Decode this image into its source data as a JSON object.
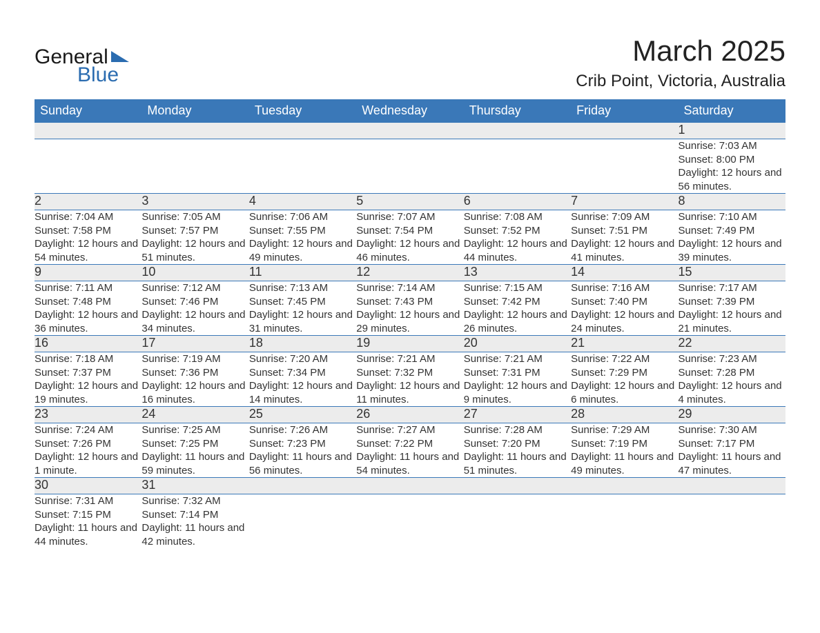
{
  "logo": {
    "top": "General",
    "bottom": "Blue",
    "tri_color": "#2b6cb0"
  },
  "title": {
    "month": "March 2025",
    "location": "Crib Point, Victoria, Australia"
  },
  "colors": {
    "header_bg": "#3a78b8",
    "header_text": "#ffffff",
    "daynum_bg": "#ececec",
    "row_divider": "#3a78b8",
    "body_text": "#333333",
    "background": "#ffffff"
  },
  "typography": {
    "month_fontsize": 42,
    "location_fontsize": 24,
    "th_fontsize": 18,
    "daynum_fontsize": 18,
    "detail_fontsize": 15
  },
  "weekdays": [
    "Sunday",
    "Monday",
    "Tuesday",
    "Wednesday",
    "Thursday",
    "Friday",
    "Saturday"
  ],
  "weeks": [
    [
      null,
      null,
      null,
      null,
      null,
      null,
      {
        "d": "1",
        "sr": "7:03 AM",
        "ss": "8:00 PM",
        "dl": "12 hours and 56 minutes."
      }
    ],
    [
      {
        "d": "2",
        "sr": "7:04 AM",
        "ss": "7:58 PM",
        "dl": "12 hours and 54 minutes."
      },
      {
        "d": "3",
        "sr": "7:05 AM",
        "ss": "7:57 PM",
        "dl": "12 hours and 51 minutes."
      },
      {
        "d": "4",
        "sr": "7:06 AM",
        "ss": "7:55 PM",
        "dl": "12 hours and 49 minutes."
      },
      {
        "d": "5",
        "sr": "7:07 AM",
        "ss": "7:54 PM",
        "dl": "12 hours and 46 minutes."
      },
      {
        "d": "6",
        "sr": "7:08 AM",
        "ss": "7:52 PM",
        "dl": "12 hours and 44 minutes."
      },
      {
        "d": "7",
        "sr": "7:09 AM",
        "ss": "7:51 PM",
        "dl": "12 hours and 41 minutes."
      },
      {
        "d": "8",
        "sr": "7:10 AM",
        "ss": "7:49 PM",
        "dl": "12 hours and 39 minutes."
      }
    ],
    [
      {
        "d": "9",
        "sr": "7:11 AM",
        "ss": "7:48 PM",
        "dl": "12 hours and 36 minutes."
      },
      {
        "d": "10",
        "sr": "7:12 AM",
        "ss": "7:46 PM",
        "dl": "12 hours and 34 minutes."
      },
      {
        "d": "11",
        "sr": "7:13 AM",
        "ss": "7:45 PM",
        "dl": "12 hours and 31 minutes."
      },
      {
        "d": "12",
        "sr": "7:14 AM",
        "ss": "7:43 PM",
        "dl": "12 hours and 29 minutes."
      },
      {
        "d": "13",
        "sr": "7:15 AM",
        "ss": "7:42 PM",
        "dl": "12 hours and 26 minutes."
      },
      {
        "d": "14",
        "sr": "7:16 AM",
        "ss": "7:40 PM",
        "dl": "12 hours and 24 minutes."
      },
      {
        "d": "15",
        "sr": "7:17 AM",
        "ss": "7:39 PM",
        "dl": "12 hours and 21 minutes."
      }
    ],
    [
      {
        "d": "16",
        "sr": "7:18 AM",
        "ss": "7:37 PM",
        "dl": "12 hours and 19 minutes."
      },
      {
        "d": "17",
        "sr": "7:19 AM",
        "ss": "7:36 PM",
        "dl": "12 hours and 16 minutes."
      },
      {
        "d": "18",
        "sr": "7:20 AM",
        "ss": "7:34 PM",
        "dl": "12 hours and 14 minutes."
      },
      {
        "d": "19",
        "sr": "7:21 AM",
        "ss": "7:32 PM",
        "dl": "12 hours and 11 minutes."
      },
      {
        "d": "20",
        "sr": "7:21 AM",
        "ss": "7:31 PM",
        "dl": "12 hours and 9 minutes."
      },
      {
        "d": "21",
        "sr": "7:22 AM",
        "ss": "7:29 PM",
        "dl": "12 hours and 6 minutes."
      },
      {
        "d": "22",
        "sr": "7:23 AM",
        "ss": "7:28 PM",
        "dl": "12 hours and 4 minutes."
      }
    ],
    [
      {
        "d": "23",
        "sr": "7:24 AM",
        "ss": "7:26 PM",
        "dl": "12 hours and 1 minute."
      },
      {
        "d": "24",
        "sr": "7:25 AM",
        "ss": "7:25 PM",
        "dl": "11 hours and 59 minutes."
      },
      {
        "d": "25",
        "sr": "7:26 AM",
        "ss": "7:23 PM",
        "dl": "11 hours and 56 minutes."
      },
      {
        "d": "26",
        "sr": "7:27 AM",
        "ss": "7:22 PM",
        "dl": "11 hours and 54 minutes."
      },
      {
        "d": "27",
        "sr": "7:28 AM",
        "ss": "7:20 PM",
        "dl": "11 hours and 51 minutes."
      },
      {
        "d": "28",
        "sr": "7:29 AM",
        "ss": "7:19 PM",
        "dl": "11 hours and 49 minutes."
      },
      {
        "d": "29",
        "sr": "7:30 AM",
        "ss": "7:17 PM",
        "dl": "11 hours and 47 minutes."
      }
    ],
    [
      {
        "d": "30",
        "sr": "7:31 AM",
        "ss": "7:15 PM",
        "dl": "11 hours and 44 minutes."
      },
      {
        "d": "31",
        "sr": "7:32 AM",
        "ss": "7:14 PM",
        "dl": "11 hours and 42 minutes."
      },
      null,
      null,
      null,
      null,
      null
    ]
  ],
  "labels": {
    "sunrise": "Sunrise: ",
    "sunset": "Sunset: ",
    "daylight": "Daylight: "
  }
}
